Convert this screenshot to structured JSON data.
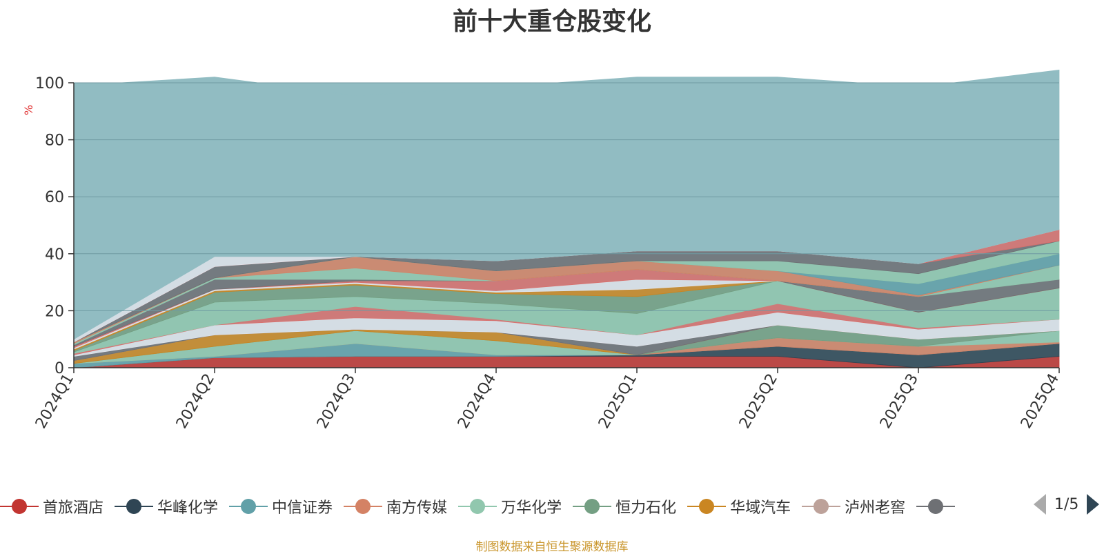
{
  "title": "前十大重仓股变化",
  "footer": "制图数据来自恒生聚源数据库",
  "pager": {
    "text": "1/5"
  },
  "legend": [
    {
      "name": "首旅酒店",
      "color": "#c23531"
    },
    {
      "name": "华峰化学",
      "color": "#2f4554"
    },
    {
      "name": "中信证券",
      "color": "#61a0a8"
    },
    {
      "name": "南方传媒",
      "color": "#d48265"
    },
    {
      "name": "万华化学",
      "color": "#91c7ae"
    },
    {
      "name": "恒力石化",
      "color": "#749f83"
    },
    {
      "name": "华域汽车",
      "color": "#ca8622"
    },
    {
      "name": "泸州老窖",
      "color": "#bda29a"
    },
    {
      "name": "",
      "color": "#6e7074"
    }
  ],
  "chart_data": {
    "type": "area",
    "stacked": true,
    "title": "前十大重仓股变化",
    "ylabel": "%",
    "ylim": [
      0,
      100
    ],
    "yticks": [
      0,
      20,
      40,
      60,
      80,
      100
    ],
    "categories": [
      "2024Q1",
      "2024Q2",
      "2024Q3",
      "2024Q4",
      "2025Q1",
      "2025Q2",
      "2025Q3",
      "2025Q4"
    ],
    "series": [
      {
        "color": "#c23531",
        "values": [
          0,
          3.5,
          4.0,
          4.0,
          4.0,
          4.0,
          0,
          4.0
        ]
      },
      {
        "color": "#2f4554",
        "values": [
          0,
          0,
          0,
          0,
          0.5,
          3.5,
          4.5,
          4.5
        ]
      },
      {
        "color": "#61a0a8",
        "values": [
          1.5,
          0.5,
          4.5,
          0.5,
          0,
          0,
          0,
          0
        ]
      },
      {
        "color": "#d48265",
        "values": [
          0,
          0,
          0,
          0,
          0,
          3.0,
          3.0,
          0.5
        ]
      },
      {
        "color": "#91c7ae",
        "values": [
          0,
          3.5,
          4.5,
          5.0,
          0,
          0,
          0,
          4.0
        ]
      },
      {
        "color": "#749f83",
        "values": [
          0,
          0,
          0,
          0,
          0,
          4.5,
          2.5,
          0
        ]
      },
      {
        "color": "#ca8622",
        "values": [
          1.0,
          4.0,
          0.5,
          3.0,
          0,
          0,
          0,
          0
        ]
      },
      {
        "color": "#bda29a",
        "values": [
          0,
          0,
          0,
          0,
          0,
          0,
          0,
          0
        ]
      },
      {
        "color": "#6e7074",
        "values": [
          1.5,
          0,
          0,
          0,
          3.0,
          0,
          0,
          0
        ]
      },
      {
        "color": "#dfe3ea",
        "values": [
          0.5,
          3.5,
          4.0,
          4.0,
          4.0,
          4.5,
          3.5,
          4.0
        ]
      },
      {
        "color": "#d86f6c",
        "values": [
          0.5,
          0,
          4.0,
          0.5,
          0,
          3.0,
          0.5,
          0
        ]
      },
      {
        "color": "#91c7ae",
        "values": [
          0.5,
          8.0,
          3.5,
          5.5,
          7.5,
          8.0,
          5.5,
          11.0
        ]
      },
      {
        "color": "#749f83",
        "values": [
          0.5,
          3.5,
          4.0,
          3.5,
          6.0,
          0,
          0,
          0
        ]
      },
      {
        "color": "#ca8622",
        "values": [
          0.5,
          0.5,
          0.5,
          0.5,
          2.5,
          0,
          0,
          0
        ]
      },
      {
        "color": "#dfe3ea",
        "values": [
          0.5,
          0.5,
          0.5,
          0.5,
          3.5,
          0,
          0,
          0
        ]
      },
      {
        "color": "#d86f6c",
        "values": [
          0.5,
          0,
          0.5,
          3.5,
          3.5,
          0,
          0,
          0
        ]
      },
      {
        "color": "#6e7074",
        "values": [
          0.5,
          3.5,
          0.5,
          0,
          0,
          0,
          5.5,
          3.0
        ]
      },
      {
        "color": "#91c7ae",
        "values": [
          0.5,
          0.5,
          4.0,
          0,
          0,
          0,
          0,
          5.0
        ]
      },
      {
        "color": "#d48265",
        "values": [
          0.5,
          0,
          4.0,
          3.5,
          3.0,
          3.5,
          0.5,
          0
        ]
      },
      {
        "color": "#61a0a8",
        "values": [
          0,
          0,
          0,
          0,
          0,
          0,
          4.0,
          4.0
        ]
      },
      {
        "color": "#91c7ae",
        "values": [
          0,
          0,
          0,
          0,
          0,
          3.5,
          3.5,
          4.5
        ]
      },
      {
        "color": "#6e7074",
        "values": [
          0,
          4.0,
          0,
          3.5,
          3.5,
          3.5,
          3.5,
          0
        ]
      },
      {
        "color": "#d86f6c",
        "values": [
          0,
          0,
          0,
          0,
          0,
          0,
          0,
          4.0
        ]
      },
      {
        "color": "#dfe3ea",
        "values": [
          1.0,
          3.5,
          0,
          0,
          0,
          0,
          0,
          0
        ]
      },
      {
        "color": "#91bcc2",
        "values": [
          89,
          63,
          56.5,
          61,
          61,
          61,
          62,
          56
        ]
      }
    ]
  }
}
